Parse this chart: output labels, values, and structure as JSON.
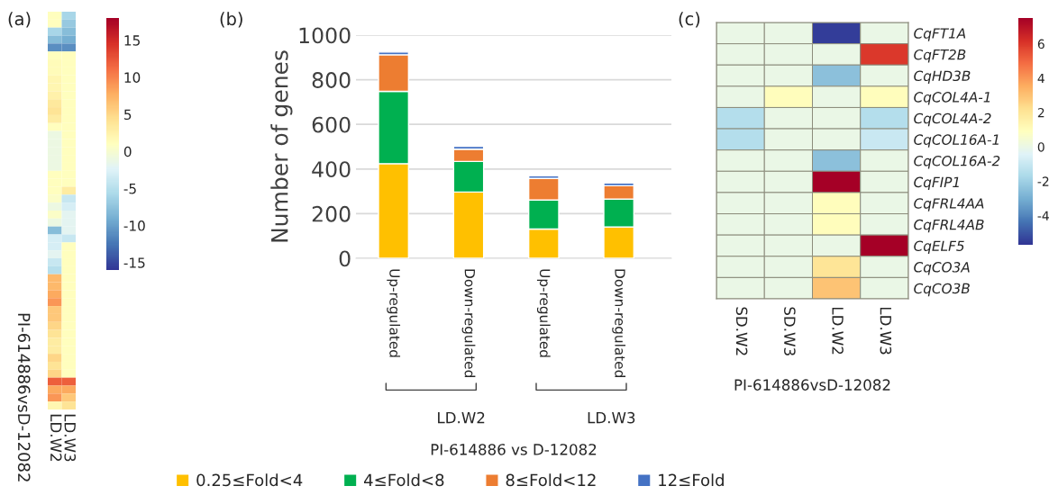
{
  "chart_data": [
    {
      "type": "heatmap",
      "title": "(a)",
      "categories": [
        "LD.W2",
        "LD.W3"
      ],
      "annotations": [
        "PI-614886vsD-12082"
      ],
      "y_categories": [
        null,
        null,
        null,
        null,
        null,
        null,
        null,
        null,
        null,
        null,
        null,
        null,
        null,
        null,
        null,
        null,
        null,
        null,
        null,
        null,
        null,
        null,
        null,
        null,
        null,
        null,
        null,
        null,
        null,
        null,
        null,
        null,
        null,
        null,
        null,
        null,
        null,
        null,
        null,
        null,
        null,
        null,
        null,
        null,
        null,
        null,
        null,
        null,
        null,
        null
      ],
      "cells": [
        [
          1,
          -6
        ],
        [
          1,
          -7
        ],
        [
          -6,
          -8
        ],
        [
          -8,
          -9
        ],
        [
          -11,
          -11
        ],
        [
          1,
          1
        ],
        [
          1.5,
          1
        ],
        [
          1.5,
          1
        ],
        [
          2,
          1
        ],
        [
          2,
          1
        ],
        [
          2.5,
          1
        ],
        [
          3.5,
          1
        ],
        [
          4,
          1
        ],
        [
          3,
          1
        ],
        [
          1,
          1
        ],
        [
          -1,
          1
        ],
        [
          -1,
          1
        ],
        [
          -1,
          1
        ],
        [
          -1,
          1
        ],
        [
          -1,
          1
        ],
        [
          1,
          1
        ],
        [
          1,
          1
        ],
        [
          1,
          3
        ],
        [
          0.5,
          -4
        ],
        [
          -1,
          -3
        ],
        [
          0.5,
          -2
        ],
        [
          -1,
          -2
        ],
        [
          -8,
          -2
        ],
        [
          -3,
          -4
        ],
        [
          -3,
          1
        ],
        [
          -2,
          1
        ],
        [
          -4,
          1
        ],
        [
          -5,
          1
        ],
        [
          7,
          1
        ],
        [
          7,
          1
        ],
        [
          8,
          1
        ],
        [
          9,
          1
        ],
        [
          6,
          1
        ],
        [
          6,
          1
        ],
        [
          5,
          1
        ],
        [
          4,
          1
        ],
        [
          3,
          1
        ],
        [
          3,
          1
        ],
        [
          5,
          1
        ],
        [
          4,
          1
        ],
        [
          5,
          1
        ],
        [
          12,
          12
        ],
        [
          8,
          8
        ],
        [
          9,
          6
        ],
        [
          2,
          4
        ]
      ],
      "clim": [
        -16,
        18
      ],
      "cticks": [
        -15,
        -10,
        -5,
        0,
        5,
        10,
        15
      ]
    },
    {
      "type": "bar",
      "title": "(b)",
      "categories": [
        "Up-regulated",
        "Down-regulated",
        "Up-regulated",
        "Down-regulated"
      ],
      "stacked": true,
      "series": [
        {
          "name": "0.25≤Fold<4",
          "color": "#ffc000",
          "values": [
            424,
            297,
            131,
            140
          ]
        },
        {
          "name": "4≤Fold<8",
          "color": "#00b050",
          "values": [
            324,
            137,
            130,
            125
          ]
        },
        {
          "name": "8≤Fold<12",
          "color": "#ed7d31",
          "values": [
            164,
            55,
            97,
            60
          ]
        },
        {
          "name": "12≤Fold",
          "color": "#4472c4",
          "values": [
            12,
            13,
            12,
            12
          ]
        }
      ],
      "ylabel": "Number of genes",
      "xlabel": "PI-614886 vs D-12082",
      "annotations": [
        "LD.W2",
        "LD.W3"
      ],
      "ylim": [
        0,
        1000
      ],
      "yticks": [
        0,
        200,
        400,
        600,
        800,
        1000
      ],
      "grid": "y",
      "legend": "bottom"
    },
    {
      "type": "heatmap",
      "title": "(c)",
      "categories": [
        "SD.W2",
        "SD.W3",
        "LD.W2",
        "LD.W3"
      ],
      "y_categories": [
        "CqFT1A",
        "CqFT2B",
        "CqHD3B",
        "CqCOL4A-1",
        "CqCOL4A-2",
        "CqCOL16A-1",
        "CqCOL16A-2",
        "CqFIP1",
        "CqFRL4AA",
        "CqFRL4AB",
        "CqELF5",
        "CqCO3A",
        "CqCO3B"
      ],
      "cells": [
        [
          0,
          0,
          -5.5,
          0
        ],
        [
          0,
          0,
          0,
          6
        ],
        [
          0,
          0,
          -2.5,
          0
        ],
        [
          0,
          1,
          0,
          1
        ],
        [
          -1.5,
          0,
          0,
          -1.5
        ],
        [
          -1.5,
          0,
          0,
          -1
        ],
        [
          0,
          0,
          -2.5,
          0
        ],
        [
          0,
          0,
          7.5,
          0
        ],
        [
          0,
          0,
          1,
          0
        ],
        [
          0,
          0,
          1,
          0
        ],
        [
          0,
          0,
          0,
          7.5
        ],
        [
          0,
          0,
          2,
          0
        ],
        [
          0,
          0,
          3,
          0
        ]
      ],
      "xlabel": "PI-614886vsD-12082",
      "clim": [
        -5.7,
        7.5
      ],
      "cticks": [
        -4,
        -2,
        0,
        2,
        4,
        6
      ]
    }
  ]
}
